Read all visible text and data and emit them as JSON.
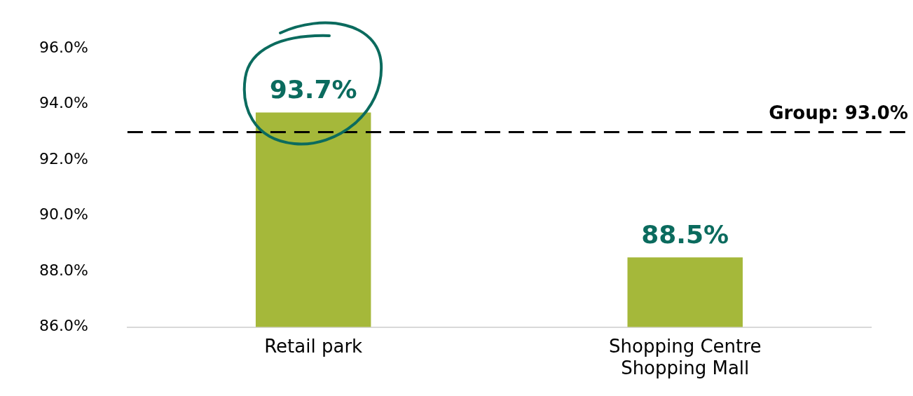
{
  "chart_data": {
    "type": "bar",
    "categories": [
      "Retail park",
      "Shopping Centre\nShopping Mall"
    ],
    "values": [
      93.7,
      88.5
    ],
    "color": "#a5b83a",
    "value_labels": [
      "93.7%",
      "88.5%"
    ],
    "ylim": [
      86,
      96
    ],
    "yticks": [
      {
        "value": 86,
        "label": "86.0%"
      },
      {
        "value": 88,
        "label": "88.0%"
      },
      {
        "value": 90,
        "label": "90.0%"
      },
      {
        "value": 92,
        "label": "92.0%"
      },
      {
        "value": 94,
        "label": "94.0%"
      },
      {
        "value": 96,
        "label": "96.0%"
      }
    ],
    "grid": false,
    "legend": false,
    "ref_lines": [
      {
        "axis": "y",
        "value": 93.0,
        "label": "Group: 93.0%",
        "color": "#000000",
        "line_style": "dashed"
      }
    ]
  }
}
